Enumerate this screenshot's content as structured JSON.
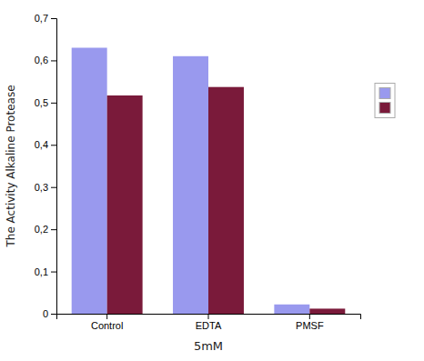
{
  "chart_data": {
    "type": "bar",
    "categories": [
      "Control",
      "EDTA",
      "PMSF"
    ],
    "series": [
      {
        "color": "#9999ee",
        "values": [
          0.63,
          0.61,
          0.022
        ]
      },
      {
        "color": "#7a1a3a",
        "values": [
          0.517,
          0.537,
          0.012
        ]
      }
    ],
    "xlabel": "5mM",
    "ylabel": "The Activity Alkaline Protease",
    "ylim": [
      0,
      0.7
    ],
    "yticks": [
      0,
      {
        "value": 0.1,
        "label": "0,1"
      },
      {
        "value": 0.2,
        "label": "0,2"
      },
      {
        "value": 0.3,
        "label": "0,3"
      },
      {
        "value": 0.4,
        "label": "0,4"
      },
      {
        "value": 0.5,
        "label": "0,5"
      },
      {
        "value": 0.6,
        "label": "0,6"
      },
      {
        "value": 0.7,
        "label": "0,7"
      }
    ],
    "grid": false,
    "legend": "right"
  }
}
